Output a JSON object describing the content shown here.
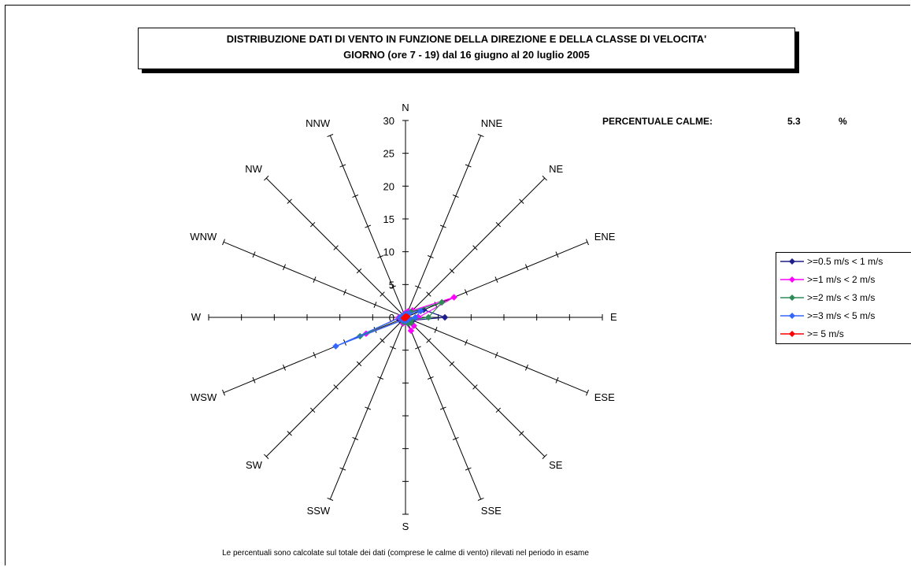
{
  "title": {
    "line1": "DISTRIBUZIONE DATI DI VENTO IN FUNZIONE DELLA DIREZIONE E DELLA CLASSE DI VELOCITA'",
    "line2": "GIORNO (ore 7 - 19)  dal 16 giugno al 20 luglio 2005"
  },
  "calme": {
    "label": "PERCENTUALE CALME:",
    "value": "5.3",
    "unit": "%"
  },
  "footnote": "Le percentuali sono calcolate sul totale dei dati (comprese le calme di vento) rilevati nel periodo in esame",
  "chart_data": {
    "type": "radar",
    "directions": [
      "N",
      "NNE",
      "NE",
      "ENE",
      "E",
      "ESE",
      "SE",
      "SSE",
      "S",
      "SSW",
      "SW",
      "WSW",
      "W",
      "WNW",
      "NW",
      "NNW"
    ],
    "radial_ticks": [
      "0",
      "5",
      "10",
      "15",
      "20",
      "25",
      "30"
    ],
    "rlim": [
      0,
      30
    ],
    "series": [
      {
        "name": ">=0.5 m/s < 1 m/s",
        "color": "#1f1f8c",
        "values": [
          0.5,
          0.8,
          1.2,
          3.0,
          6.0,
          1.2,
          0.7,
          0.5,
          0.8,
          0.6,
          0.4,
          1.0,
          0.6,
          0.3,
          0.3,
          0.3
        ]
      },
      {
        "name": ">=1 m/s < 2 m/s",
        "color": "#ff00ff",
        "values": [
          0.7,
          1.0,
          1.5,
          8.0,
          2.0,
          1.0,
          1.8,
          2.2,
          0.8,
          1.0,
          0.6,
          6.5,
          1.0,
          0.5,
          0.4,
          0.3
        ]
      },
      {
        "name": ">=2 m/s < 3 m/s",
        "color": "#2e8b57",
        "values": [
          0.5,
          0.6,
          1.2,
          6.0,
          3.5,
          1.0,
          1.2,
          1.0,
          0.6,
          0.8,
          0.6,
          7.5,
          0.8,
          0.5,
          0.4,
          0.3
        ]
      },
      {
        "name": ">=3 m/s < 5 m/s",
        "color": "#3366ff",
        "values": [
          0.5,
          0.5,
          0.8,
          2.5,
          1.5,
          0.6,
          0.5,
          0.5,
          0.5,
          0.5,
          0.6,
          11.5,
          0.8,
          0.5,
          0.3,
          0.3
        ]
      },
      {
        "name": ">= 5 m/s",
        "color": "#ff0000",
        "values": [
          0.1,
          0.1,
          0.1,
          0.3,
          0.1,
          0.1,
          0.1,
          0.1,
          0.1,
          0.1,
          0.1,
          0.3,
          0.1,
          0.1,
          0.1,
          0.1
        ]
      }
    ],
    "legend_position": "right"
  }
}
